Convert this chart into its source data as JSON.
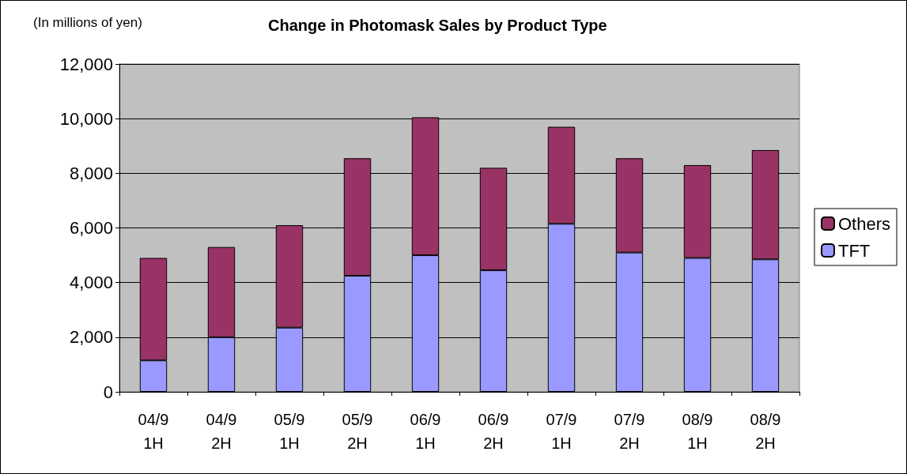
{
  "chart_data": {
    "type": "bar",
    "title": "Change in Photomask Sales by Product Type",
    "ylabel": "(In millions of yen)",
    "categories": [
      "04/9\n1H",
      "04/9\n2H",
      "05/9\n1H",
      "05/9\n2H",
      "06/9\n1H",
      "06/9\n2H",
      "07/9\n1H",
      "07/9\n2H",
      "08/9\n1H",
      "08/9\n2H"
    ],
    "stacked": true,
    "series": [
      {
        "name": "TFT",
        "color": "#9999ff",
        "values": [
          1150,
          2000,
          2350,
          4250,
          5000,
          4450,
          6150,
          5100,
          4900,
          4850
        ]
      },
      {
        "name": "Others",
        "color": "#993366",
        "values": [
          3750,
          3300,
          3750,
          4300,
          5050,
          3750,
          3550,
          3450,
          3400,
          4000
        ]
      }
    ],
    "ylim": [
      0,
      12000
    ],
    "yticks": [
      0,
      {
        "value": 2000,
        "label": "2,000"
      },
      {
        "value": 4000,
        "label": "4,000"
      },
      {
        "value": 6000,
        "label": "6,000"
      },
      {
        "value": 8000,
        "label": "8,000"
      },
      {
        "value": 10000,
        "label": "10,000"
      },
      {
        "value": 12000,
        "label": "12,000"
      }
    ],
    "grid": "y",
    "legend": "right"
  }
}
